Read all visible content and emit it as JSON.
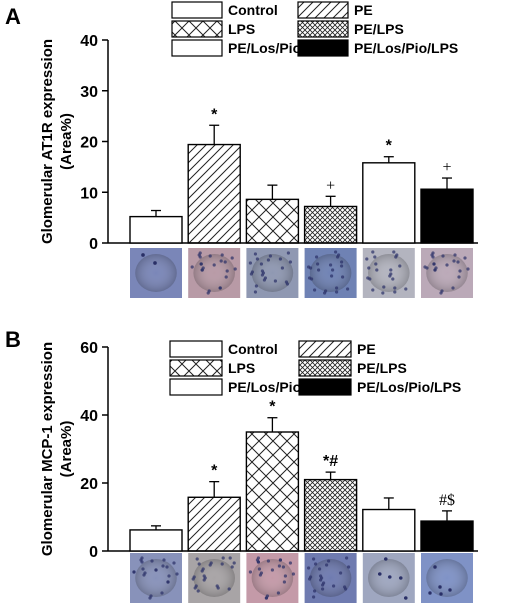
{
  "patterns": {
    "Control": "none",
    "PE": "diagonal",
    "LPS": "crosshatch",
    "PE/LPS": "dense-crosshatch",
    "PE/Los/Pio": "none",
    "PE/Los/Pio/LPS": "solid"
  },
  "chart_data": [
    {
      "panel_label": "A",
      "type": "bar",
      "ylabel": [
        "Glomerular AT1R expression",
        "(Area%)"
      ],
      "ylim": [
        0,
        40
      ],
      "yticks": [
        "0",
        "10",
        "20",
        "30",
        "40"
      ],
      "grid": false,
      "legend": {
        "placement": "top",
        "entries": [
          "Control",
          "PE",
          "LPS",
          "PE/LPS",
          "PE/Los/Pio",
          "PE/Los/Pio/LPS"
        ]
      },
      "categories": [
        "Control",
        "PE",
        "LPS",
        "PE/LPS",
        "PE/Los/Pio",
        "PE/Los/Pio/LPS"
      ],
      "values": [
        5.2,
        19.4,
        8.6,
        7.2,
        15.8,
        10.6
      ],
      "errors": [
        1.2,
        3.8,
        2.8,
        2.0,
        1.2,
        2.2
      ],
      "annotations": [
        "",
        "*",
        "",
        "+",
        "*",
        "+"
      ],
      "micrograph_tints": [
        "#7a86b8",
        "#b89aa6",
        "#8f98b2",
        "#6f82b4",
        "#b3b4bf",
        "#bba9b8"
      ]
    },
    {
      "panel_label": "B",
      "type": "bar",
      "ylabel": [
        "Glomerular MCP-1 expression",
        "(Area%)"
      ],
      "ylim": [
        0,
        60
      ],
      "yticks": [
        "0",
        "20",
        "40",
        "60"
      ],
      "grid": false,
      "legend": {
        "placement": "top",
        "entries": [
          "Control",
          "PE",
          "LPS",
          "PE/LPS",
          "PE/Los/Pio",
          "PE/Los/Pio/LPS"
        ]
      },
      "categories": [
        "Control",
        "PE",
        "LPS",
        "PE/LPS",
        "PE/Los/Pio",
        "PE/Los/Pio/LPS"
      ],
      "values": [
        6.2,
        15.8,
        35.0,
        21.0,
        12.2,
        8.8
      ],
      "errors": [
        1.2,
        4.6,
        4.2,
        2.2,
        3.4,
        3.0
      ],
      "annotations": [
        "",
        "*",
        "*",
        "*#",
        "",
        "#$"
      ],
      "micrograph_tints": [
        "#8892ba",
        "#a8a4a6",
        "#c49aa8",
        "#6f7bb0",
        "#9fa7c0",
        "#7f92c6"
      ]
    }
  ]
}
